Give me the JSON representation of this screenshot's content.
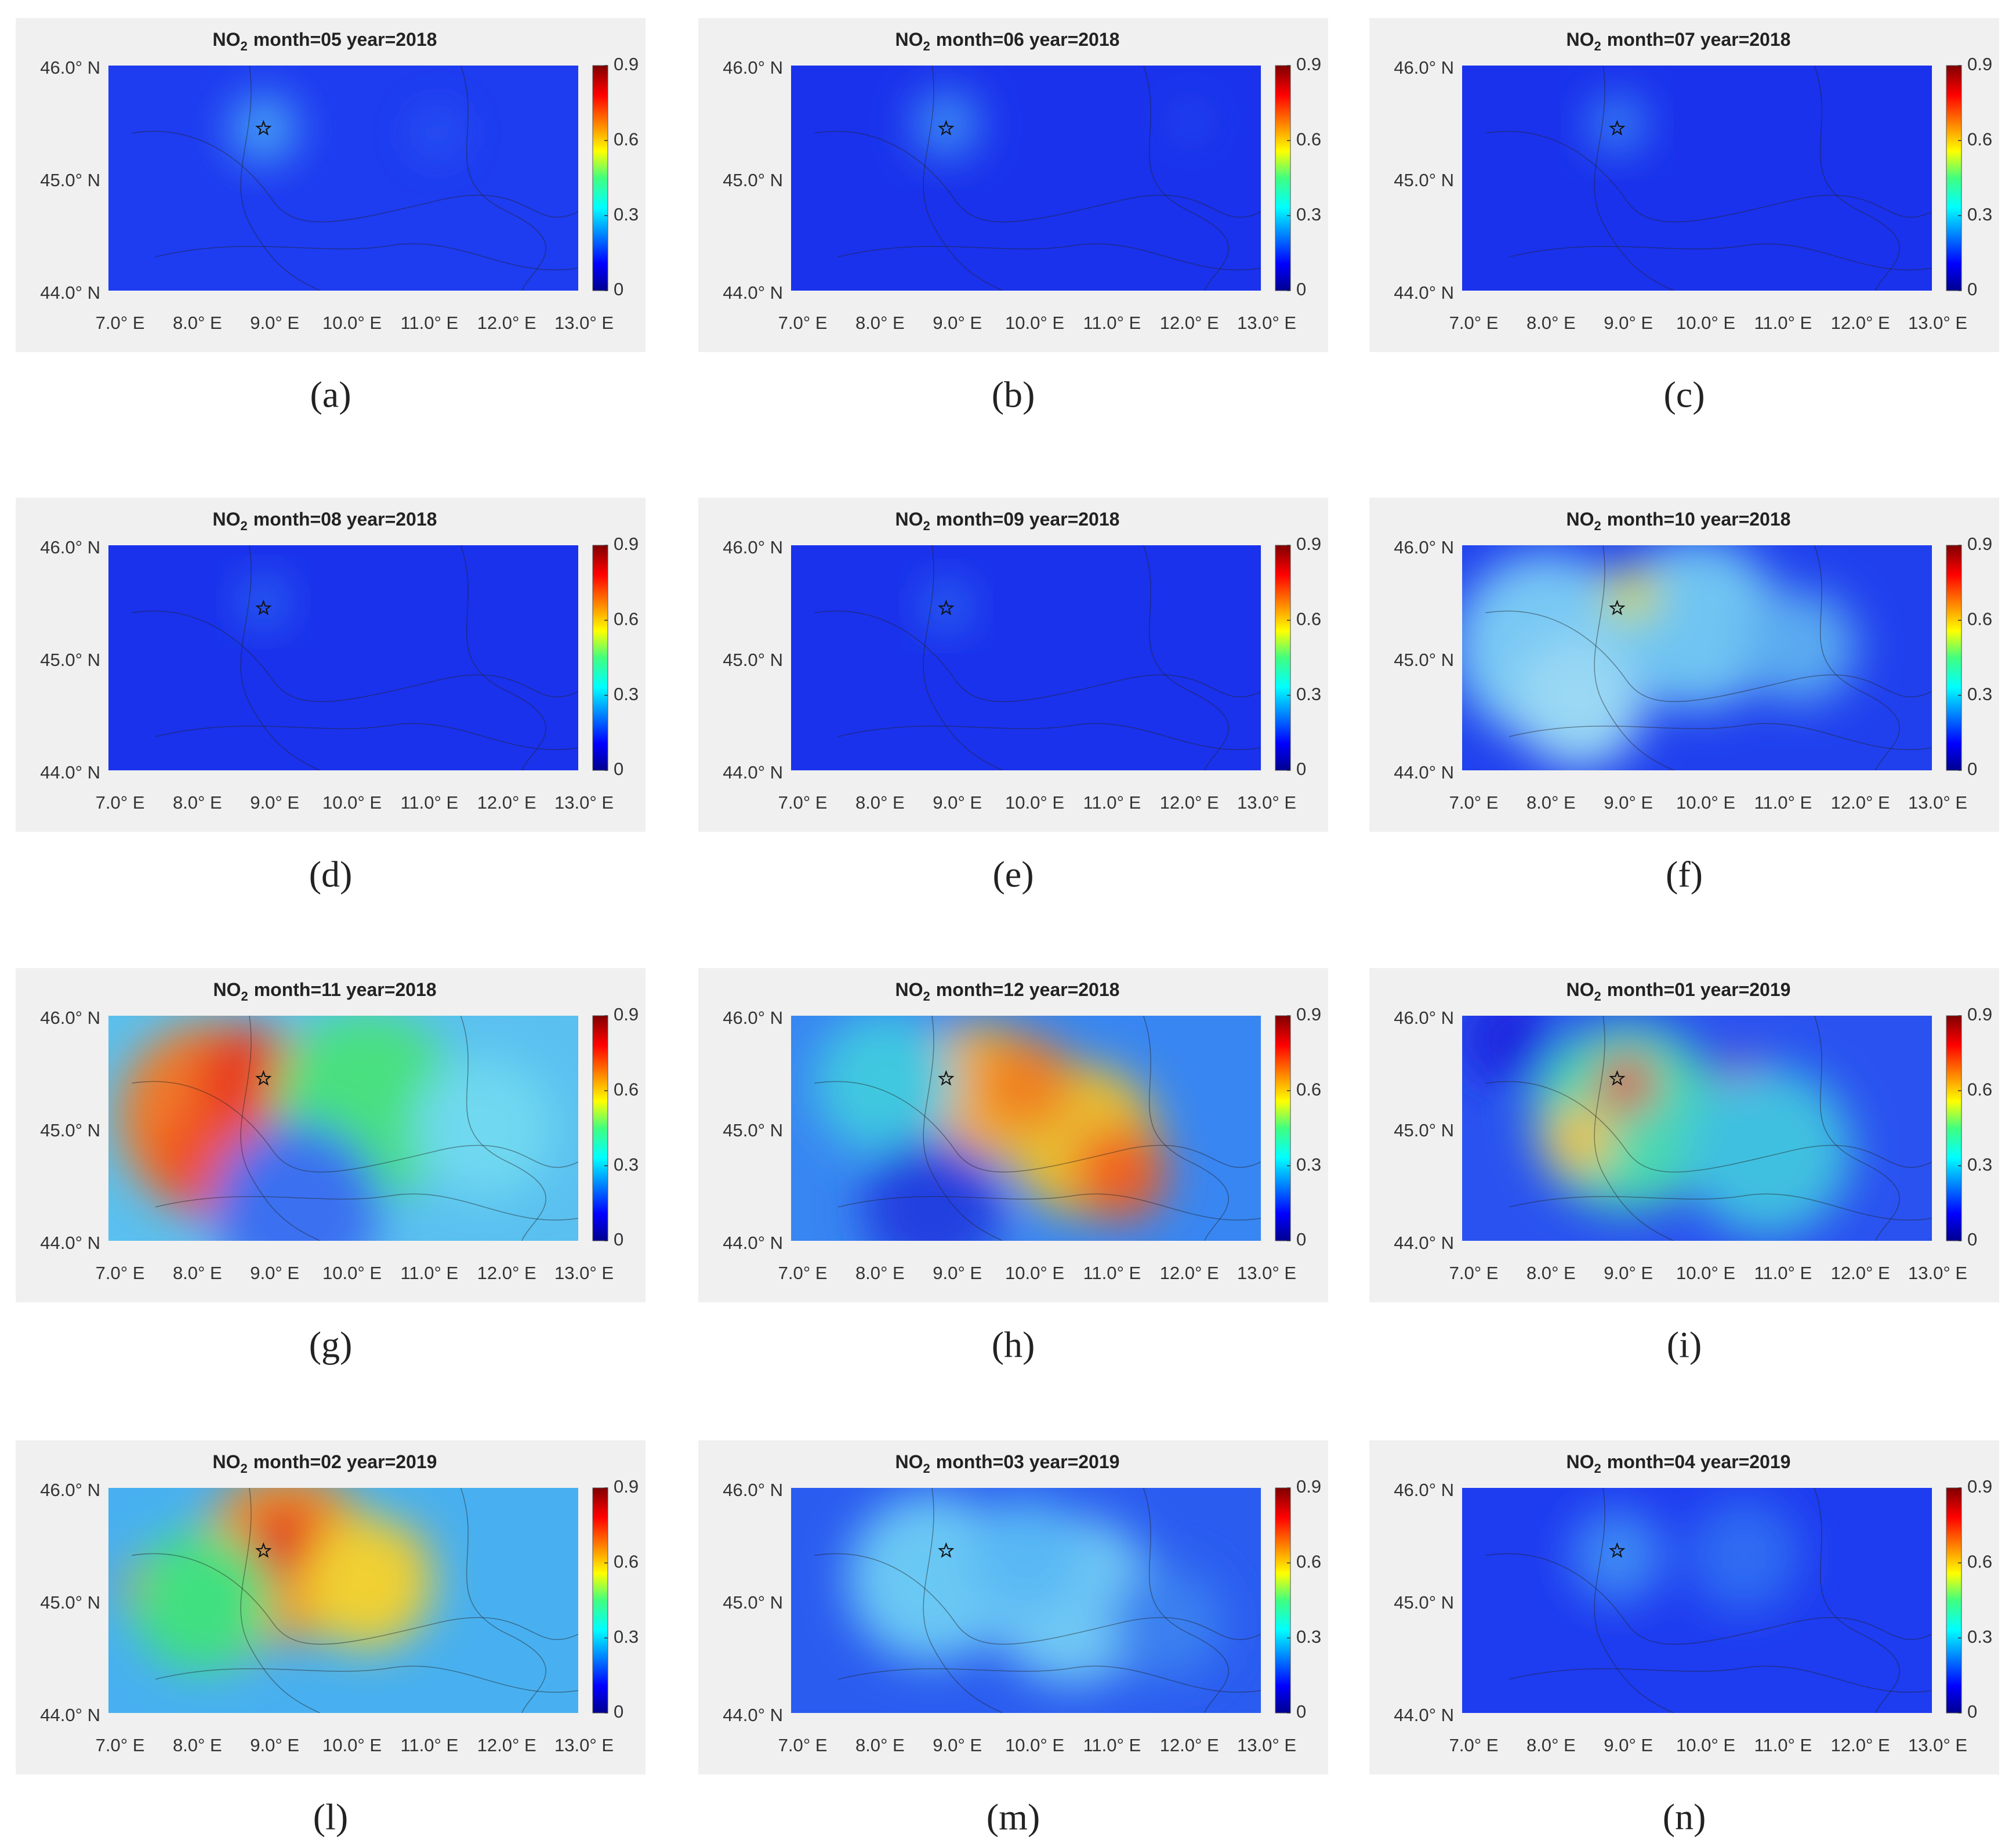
{
  "title_prefix": "NO",
  "title_subscript": "2",
  "panels": [
    {
      "title": "month=05 year=2018",
      "caption": "(a)"
    },
    {
      "title": "month=06 year=2018",
      "caption": "(b)"
    },
    {
      "title": "month=07 year=2018",
      "caption": "(c)"
    },
    {
      "title": "month=08 year=2018",
      "caption": "(d)"
    },
    {
      "title": "month=09 year=2018",
      "caption": "(e)"
    },
    {
      "title": "month=10 year=2018",
      "caption": "(f)"
    },
    {
      "title": "month=11 year=2018",
      "caption": "(g)"
    },
    {
      "title": "month=12 year=2018",
      "caption": "(h)"
    },
    {
      "title": "month=01 year=2019",
      "caption": "(i)"
    },
    {
      "title": "month=02 year=2019",
      "caption": "(l)"
    },
    {
      "title": "month=03 year=2019",
      "caption": "(m)"
    },
    {
      "title": "month=04 year=2019",
      "caption": "(n)"
    }
  ],
  "lat_labels": [
    "46.0° N",
    "45.0° N",
    "44.0° N"
  ],
  "lon_labels": [
    "7.0° E",
    "8.0° E",
    "9.0° E",
    "10.0° E",
    "11.0° E",
    "12.0° E",
    "13.0° E"
  ],
  "colorbar_lim": [
    0,
    0.9
  ],
  "colorbar_ticks": [
    0,
    0.3,
    0.6,
    0.9
  ]
}
